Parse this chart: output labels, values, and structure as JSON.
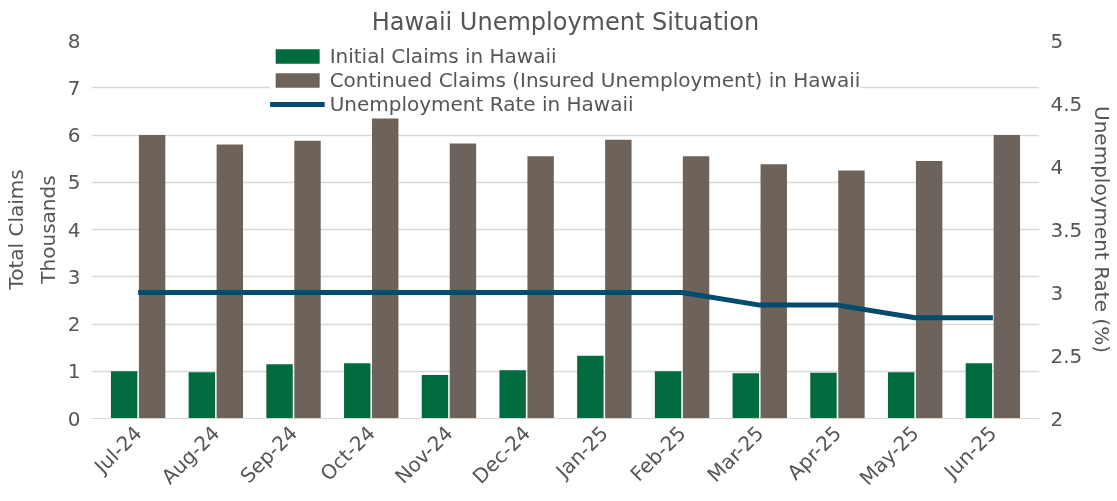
{
  "chart_data": {
    "type": "bar",
    "title": "Hawaii Unemployment Situation",
    "ylabel": "Total Claims",
    "y2label": "Unemployment Rate (%)",
    "annotations": [
      "Thousands"
    ],
    "categories": [
      "Jul-24",
      "Aug-24",
      "Sep-24",
      "Oct-24",
      "Nov-24",
      "Dec-24",
      "Jan-25",
      "Feb-25",
      "Mar-25",
      "Apr-25",
      "May-25",
      "Jun-25"
    ],
    "series": [
      {
        "name": "Initial Claims in Hawaii",
        "color": "#006b3f",
        "values": [
          1.0,
          0.98,
          1.15,
          1.17,
          0.92,
          1.02,
          1.33,
          1.0,
          0.96,
          0.97,
          0.98,
          1.17
        ]
      },
      {
        "name": "Continued Claims (Insured Unemployment) in Hawaii",
        "color": "#6e635a",
        "values": [
          6.0,
          5.8,
          5.88,
          6.35,
          5.82,
          5.55,
          5.9,
          5.55,
          5.38,
          5.25,
          5.45,
          6.0
        ]
      },
      {
        "name": "Unemployment Rate in Hawaii",
        "type": "line",
        "axis": "y2",
        "color": "#004b6e",
        "values": [
          3.0,
          3.0,
          3.0,
          3.0,
          3.0,
          3.0,
          3.0,
          3.0,
          2.9,
          2.9,
          2.8,
          2.8
        ]
      }
    ],
    "ylim": [
      0,
      8
    ],
    "yticks": [
      0,
      1,
      2,
      3,
      4,
      5,
      6,
      7,
      8
    ],
    "y2lim": [
      2,
      5
    ],
    "y2ticks": [
      2,
      2.5,
      3,
      3.5,
      4,
      4.5,
      5
    ],
    "grid": "y",
    "legend": "top"
  }
}
